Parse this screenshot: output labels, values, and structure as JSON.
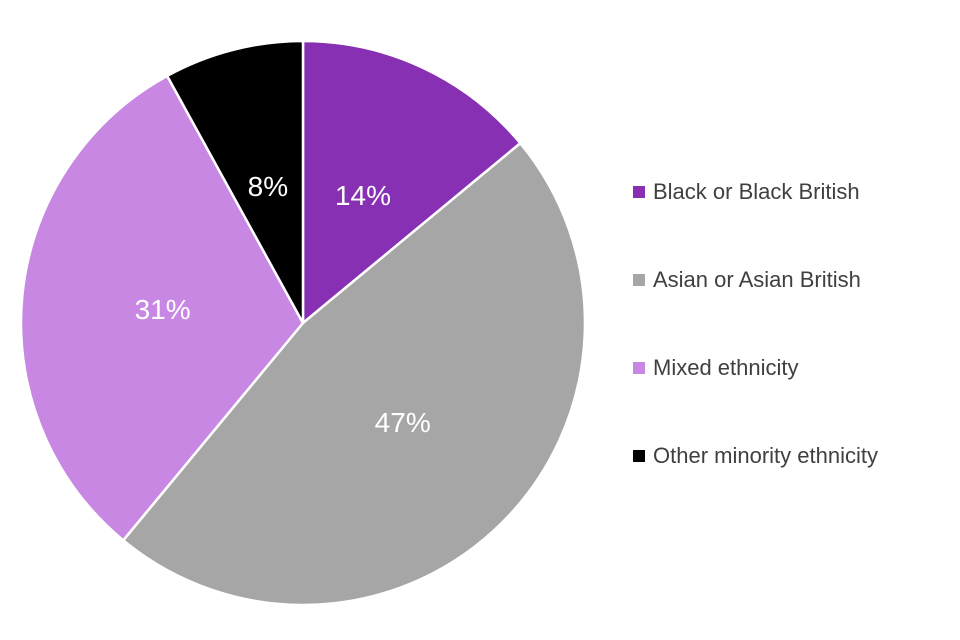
{
  "chart_data": {
    "type": "pie",
    "title": "",
    "categories": [
      "Black or Black British",
      "Asian or Asian British",
      "Mixed ethnicity",
      "Other minority ethnicity"
    ],
    "values": [
      14,
      47,
      31,
      8
    ],
    "slice_labels": [
      "14%",
      "47%",
      "31%",
      "8%"
    ],
    "colors": [
      "#8730B3",
      "#A6A6A6",
      "#C787E2",
      "#000000"
    ],
    "start_angle_deg": 0,
    "direction": "clockwise",
    "legend_position": "right",
    "slice_border_color": "#FFFFFF",
    "slice_label_color": "#FFFFFF",
    "legend_text_color": "#404040",
    "background_color": "#FFFFFF"
  }
}
